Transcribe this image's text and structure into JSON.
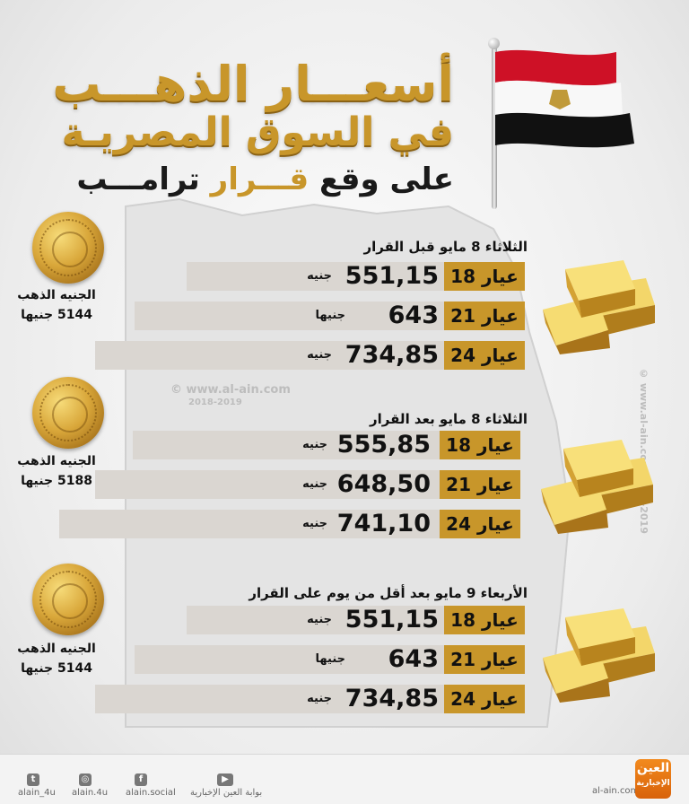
{
  "header": {
    "title_line1": "أسعـــار الذهـــب",
    "title_line2": "في السوق المصريـة",
    "title_line3_a": "على وقع ",
    "title_line3_b": "قـــرار",
    "title_line3_c": " ترامـــب"
  },
  "watermark": {
    "url": "© www.al-ain.com",
    "years": "2018-2019",
    "vertical": "© www.al-ain.com 2018-2019"
  },
  "sections": [
    {
      "title": "الثلاثاء 8 مايو قبل القرار",
      "coin_caption_1": "الجنيه الذهب",
      "coin_caption_2": "5144 جنيها",
      "rows": [
        {
          "label": "عيار 18",
          "price": "551,15",
          "unit": "جنيه"
        },
        {
          "label": "عيار 21",
          "price": "643",
          "unit": "جنيها"
        },
        {
          "label": "عيار 24",
          "price": "734,85",
          "unit": "جنيه"
        }
      ]
    },
    {
      "title": "الثلاثاء 8 مايو بعد القرار",
      "coin_caption_1": "الجنيه الذهب",
      "coin_caption_2": "5188 جنيها",
      "rows": [
        {
          "label": "عيار 18",
          "price": "555,85",
          "unit": "جنيه"
        },
        {
          "label": "عيار 21",
          "price": "648,50",
          "unit": "جنيه"
        },
        {
          "label": "عيار 24",
          "price": "741,10",
          "unit": "جنيه"
        }
      ]
    },
    {
      "title": "الأربعاء 9 مايو بعد أقل من يوم على القرار",
      "coin_caption_1": "الجنيه الذهب",
      "coin_caption_2": "5144 جنيها",
      "rows": [
        {
          "label": "عيار 18",
          "price": "551,15",
          "unit": "جنيه"
        },
        {
          "label": "عيار 21",
          "price": "643",
          "unit": "جنيها"
        },
        {
          "label": "عيار 24",
          "price": "734,85",
          "unit": "جنيه"
        }
      ]
    }
  ],
  "footer": {
    "twitter": "alain_4u",
    "instagram": "alain.4u",
    "facebook": "alain.social",
    "youtube": "بوابة العين الإخبارية",
    "site": "al-ain.com",
    "logo_top": "العين",
    "logo_bottom": "الإخبارية"
  },
  "colors": {
    "gold": "#c8962a",
    "bar": "#dad6d1",
    "flag_red": "#ce1126",
    "flag_black": "#111111",
    "logo_orange": "#e8741a"
  }
}
